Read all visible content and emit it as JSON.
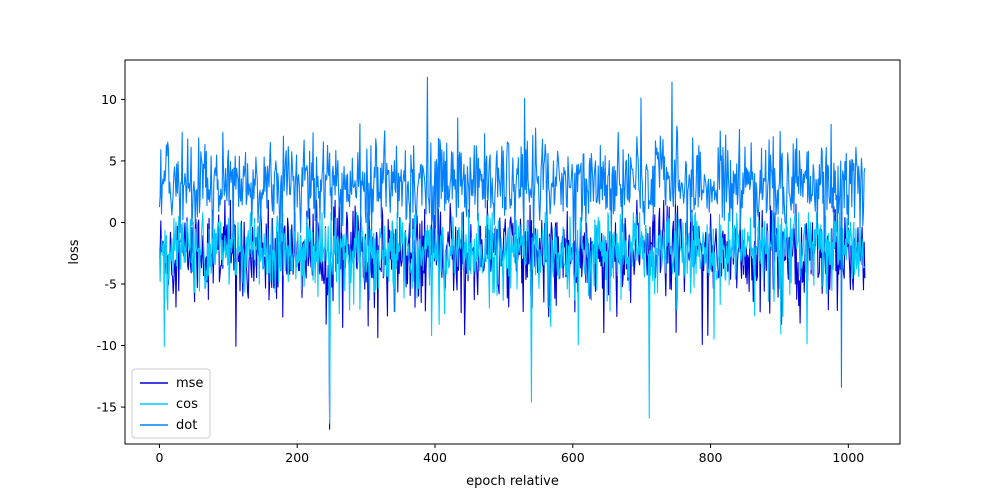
{
  "chart_data": {
    "type": "line",
    "xlabel": "epoch relative",
    "ylabel": "loss",
    "xlim": [
      -50,
      1075
    ],
    "ylim": [
      -18,
      13.2
    ],
    "xticks": [
      0,
      200,
      400,
      600,
      800,
      1000
    ],
    "yticks": [
      10,
      5,
      0,
      -5,
      -10,
      -15
    ],
    "x_start": 0,
    "x_end": 1024,
    "legend_position": "lower-left",
    "series": [
      {
        "name": "mse",
        "color": "#0000dd",
        "center": -2.3,
        "low": -16.8,
        "high": 1.8
      },
      {
        "name": "cos",
        "color": "#00ccff",
        "center": -2.2,
        "low": -15.9,
        "high": 0.8
      },
      {
        "name": "dot",
        "color": "#0080ff",
        "center": 3.3,
        "low": -13.4,
        "high": 11.8
      }
    ]
  }
}
